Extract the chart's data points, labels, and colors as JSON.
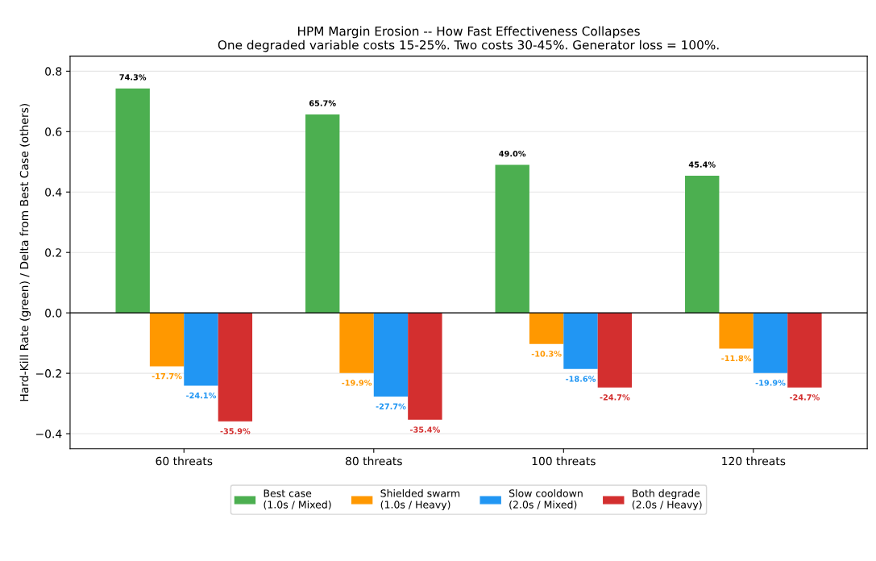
{
  "chart_data": {
    "type": "bar",
    "title": "HPM Margin Erosion -- How Fast Effectiveness Collapses",
    "subtitle": "One degraded variable costs 15-25%. Two costs 30-45%. Generator loss = 100%.",
    "ylabel": "Hard-Kill Rate (green) / Delta from Best Case (others)",
    "categories": [
      "60 threats",
      "80 threats",
      "100 threats",
      "120 threats"
    ],
    "series": [
      {
        "name": "Best case\n(1.0s / Mixed)",
        "color": "#4caf50",
        "values": [
          0.743,
          0.657,
          0.49,
          0.454
        ],
        "value_labels": [
          "74.3%",
          "65.7%",
          "49.0%",
          "45.4%"
        ]
      },
      {
        "name": "Shielded swarm\n(1.0s / Heavy)",
        "color": "#ff9800",
        "values": [
          -0.177,
          -0.199,
          -0.103,
          -0.118
        ],
        "value_labels": [
          "-17.7%",
          "-19.9%",
          "-10.3%",
          "-11.8%"
        ]
      },
      {
        "name": "Slow cooldown\n(2.0s / Mixed)",
        "color": "#2196f3",
        "values": [
          -0.241,
          -0.277,
          -0.186,
          -0.199
        ],
        "value_labels": [
          "-24.1%",
          "-27.7%",
          "-18.6%",
          "-19.9%"
        ]
      },
      {
        "name": "Both degrade\n(2.0s / Heavy)",
        "color": "#d32f2f",
        "values": [
          -0.359,
          -0.354,
          -0.247,
          -0.247
        ],
        "value_labels": [
          "-35.9%",
          "-35.4%",
          "-24.7%",
          "-24.7%"
        ]
      }
    ],
    "ylim": [
      -0.45,
      0.85
    ],
    "yticks": [
      {
        "value": -0.4,
        "label": "−0.4"
      },
      {
        "value": -0.2,
        "label": "−0.2"
      },
      {
        "value": 0,
        "label": "0.0"
      },
      {
        "value": 0.2,
        "label": "0.2"
      },
      {
        "value": 0.4,
        "label": "0.4"
      },
      {
        "value": 0.6,
        "label": "0.6"
      },
      {
        "value": 0.8,
        "label": "0.8"
      }
    ],
    "ref_lines": [
      {
        "axis": "y",
        "value": 0,
        "color": "#000000"
      }
    ],
    "grid": "y",
    "legend": "bottom"
  }
}
